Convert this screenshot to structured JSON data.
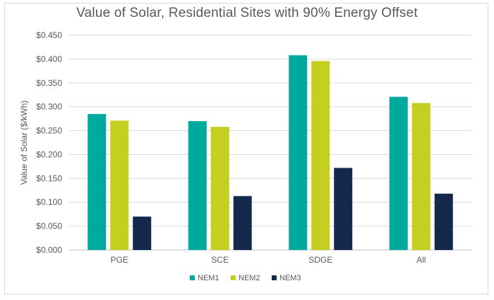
{
  "chart_data": {
    "type": "bar",
    "title": "Value of Solar, Residential Sites with 90% Energy Offset",
    "xlabel": "",
    "ylabel": "Value of Solar ($/kWh)",
    "ylim": [
      0,
      0.45
    ],
    "yticks": [
      "$0.000",
      "$0.050",
      "$0.100",
      "$0.150",
      "$0.200",
      "$0.250",
      "$0.300",
      "$0.350",
      "$0.400",
      "$0.450"
    ],
    "categories": [
      "PGE",
      "SCE",
      "SDGE",
      "All"
    ],
    "series": [
      {
        "name": "NEM1",
        "color": "#00A99D",
        "values": [
          0.285,
          0.27,
          0.408,
          0.321
        ]
      },
      {
        "name": "NEM2",
        "color": "#C4CF1F",
        "values": [
          0.271,
          0.258,
          0.396,
          0.308
        ]
      },
      {
        "name": "NEM3",
        "color": "#14284B",
        "values": [
          0.07,
          0.113,
          0.172,
          0.118
        ]
      }
    ],
    "grid": true,
    "legend_position": "bottom"
  }
}
